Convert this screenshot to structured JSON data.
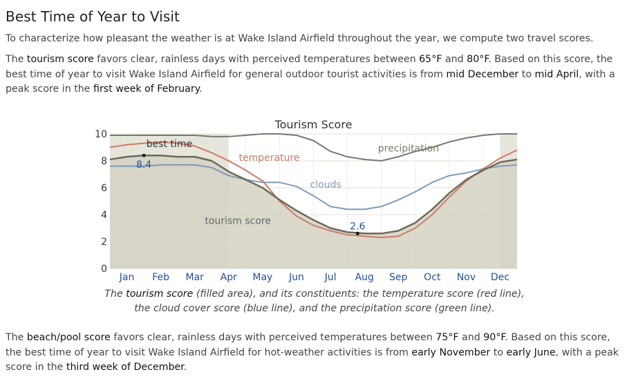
{
  "heading": "Best Time of Year to Visit",
  "intro": "To characterize how pleasant the weather is at Wake Island Airfield throughout the year, we compute two travel scores.",
  "tourism_paragraph": {
    "p1": "The ",
    "term": "tourism score",
    "p2": " favors clear, rainless days with perceived temperatures between ",
    "t_low": "65°F",
    "p3": " and ",
    "t_high": "80°F",
    "p4": ". Based on this score, the best time of year to visit Wake Island Airfield for general outdoor tourist activities is from ",
    "start": "mid December",
    "p5": " to ",
    "end": "mid April",
    "p6": ", with a peak score in the ",
    "peak": "first week of February",
    "p7": "."
  },
  "beach_paragraph": {
    "p1": "The ",
    "term": "beach/pool score",
    "p2": " favors clear, rainless days with perceived temperatures between ",
    "t_low": "75°F",
    "p3": " and ",
    "t_high": "90°F",
    "p4": ". Based on this score, the best time of year to visit Wake Island Airfield for hot-weather activities is from ",
    "start": "early November",
    "p5": " to ",
    "end": "early June",
    "p6": ", with a peak score in the ",
    "peak": "third week of December",
    "p7": "."
  },
  "caption": {
    "c1": "The ",
    "term": "tourism score",
    "c2": " (filled area), and its constituents: the temperature score (red line), the cloud cover score (blue line), and the precipitation score (green line)."
  },
  "chart_data": {
    "type": "area",
    "title": "Tourism Score",
    "x_ticks": [
      "Jan",
      "Feb",
      "Mar",
      "Apr",
      "May",
      "Jun",
      "Jul",
      "Aug",
      "Sep",
      "Oct",
      "Nov",
      "Dec"
    ],
    "y_ticks": [
      "0",
      "2",
      "4",
      "6",
      "8",
      "10"
    ],
    "ylim": [
      0,
      10
    ],
    "best_time_label": "best time",
    "best_time_periods": [
      [
        0.0,
        3.5
      ],
      [
        11.5,
        12.0
      ]
    ],
    "peak": {
      "month": 1.0,
      "value": 8.4,
      "label": "8.4"
    },
    "trough": {
      "month": 7.3,
      "value": 2.6,
      "label": "2.6"
    },
    "colors": {
      "tourism": "#6b6a5a",
      "fill": "#d3d2c3",
      "temperature": "#cc7a66",
      "clouds": "#7f9ab8",
      "precipitation": "#76786a",
      "best_band": "#e6e5dc"
    },
    "series": [
      {
        "name": "tourism score",
        "points": [
          [
            0,
            8.1
          ],
          [
            0.5,
            8.3
          ],
          [
            1.0,
            8.4
          ],
          [
            1.5,
            8.4
          ],
          [
            2.0,
            8.3
          ],
          [
            2.5,
            8.3
          ],
          [
            3.0,
            8.0
          ],
          [
            3.5,
            7.2
          ],
          [
            4.0,
            6.6
          ],
          [
            4.5,
            6.0
          ],
          [
            5.0,
            5.1
          ],
          [
            5.5,
            4.3
          ],
          [
            6.0,
            3.6
          ],
          [
            6.5,
            3.0
          ],
          [
            7.0,
            2.7
          ],
          [
            7.5,
            2.6
          ],
          [
            8.0,
            2.6
          ],
          [
            8.5,
            2.8
          ],
          [
            9.0,
            3.4
          ],
          [
            9.5,
            4.4
          ],
          [
            10.0,
            5.6
          ],
          [
            10.5,
            6.6
          ],
          [
            11.0,
            7.3
          ],
          [
            11.5,
            7.9
          ],
          [
            12.0,
            8.1
          ]
        ]
      },
      {
        "name": "temperature",
        "points": [
          [
            0,
            9.0
          ],
          [
            0.5,
            9.2
          ],
          [
            1.0,
            9.3
          ],
          [
            1.5,
            9.4
          ],
          [
            2.0,
            9.3
          ],
          [
            2.5,
            9.1
          ],
          [
            3.0,
            8.6
          ],
          [
            3.5,
            8.0
          ],
          [
            4.0,
            7.3
          ],
          [
            4.5,
            6.5
          ],
          [
            5.0,
            5.0
          ],
          [
            5.5,
            3.9
          ],
          [
            6.0,
            3.2
          ],
          [
            6.5,
            2.8
          ],
          [
            7.0,
            2.5
          ],
          [
            7.5,
            2.4
          ],
          [
            8.0,
            2.3
          ],
          [
            8.5,
            2.4
          ],
          [
            9.0,
            3.0
          ],
          [
            9.5,
            4.0
          ],
          [
            10.0,
            5.3
          ],
          [
            10.5,
            6.5
          ],
          [
            11.0,
            7.4
          ],
          [
            11.5,
            8.2
          ],
          [
            12.0,
            8.8
          ]
        ]
      },
      {
        "name": "clouds",
        "points": [
          [
            0,
            7.6
          ],
          [
            0.5,
            7.6
          ],
          [
            1.0,
            7.6
          ],
          [
            1.5,
            7.7
          ],
          [
            2.0,
            7.7
          ],
          [
            2.5,
            7.7
          ],
          [
            3.0,
            7.5
          ],
          [
            3.5,
            6.9
          ],
          [
            4.0,
            6.6
          ],
          [
            4.5,
            6.4
          ],
          [
            5.0,
            6.4
          ],
          [
            5.5,
            6.1
          ],
          [
            6.0,
            5.4
          ],
          [
            6.5,
            4.6
          ],
          [
            7.0,
            4.4
          ],
          [
            7.5,
            4.4
          ],
          [
            8.0,
            4.6
          ],
          [
            8.5,
            5.1
          ],
          [
            9.0,
            5.7
          ],
          [
            9.5,
            6.4
          ],
          [
            10.0,
            6.9
          ],
          [
            10.5,
            7.1
          ],
          [
            11.0,
            7.4
          ],
          [
            11.5,
            7.6
          ],
          [
            12.0,
            7.7
          ]
        ]
      },
      {
        "name": "precipitation",
        "points": [
          [
            0,
            9.9
          ],
          [
            0.5,
            9.9
          ],
          [
            1.0,
            9.9
          ],
          [
            1.5,
            9.9
          ],
          [
            2.0,
            9.9
          ],
          [
            2.5,
            9.9
          ],
          [
            3.0,
            9.8
          ],
          [
            3.5,
            9.8
          ],
          [
            4.0,
            9.9
          ],
          [
            4.5,
            10.0
          ],
          [
            5.0,
            10.0
          ],
          [
            5.5,
            9.9
          ],
          [
            6.0,
            9.5
          ],
          [
            6.5,
            8.7
          ],
          [
            7.0,
            8.3
          ],
          [
            7.5,
            8.1
          ],
          [
            8.0,
            8.0
          ],
          [
            8.5,
            8.3
          ],
          [
            9.0,
            8.7
          ],
          [
            9.5,
            9.0
          ],
          [
            10.0,
            9.4
          ],
          [
            10.5,
            9.7
          ],
          [
            11.0,
            9.9
          ],
          [
            11.5,
            10.0
          ],
          [
            12.0,
            10.0
          ]
        ]
      }
    ],
    "series_labels": [
      {
        "series": "temperature",
        "text": "temperature",
        "month": 3.8,
        "value": 8.0
      },
      {
        "series": "clouds",
        "text": "clouds",
        "month": 5.9,
        "value": 6.0
      },
      {
        "series": "precipitation",
        "text": "precipitation",
        "month": 7.9,
        "value": 8.7
      },
      {
        "series": "tourism score",
        "text": "tourism score",
        "month": 2.8,
        "value": 3.3
      }
    ]
  }
}
